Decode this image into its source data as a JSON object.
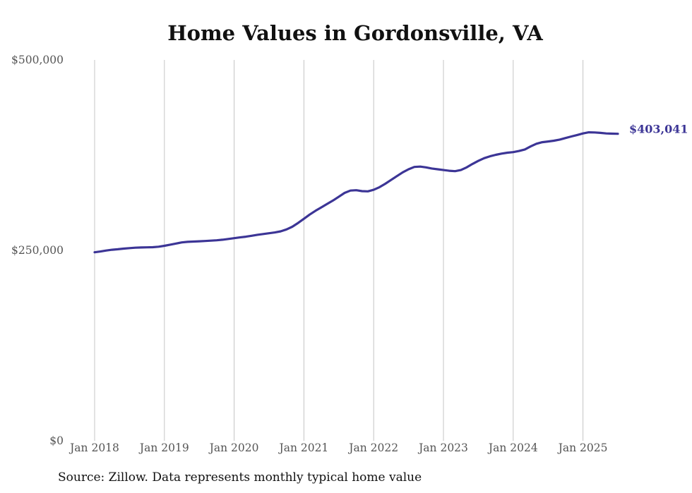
{
  "chart_data": {
    "type": "line",
    "title": "Home Values in Gordonsville, VA",
    "source_note": "Source: Zillow. Data represents monthly typical home value",
    "xlabel": "",
    "ylabel": "",
    "x_tick_labels": [
      "Jan 2018",
      "Jan 2019",
      "Jan 2020",
      "Jan 2021",
      "Jan 2022",
      "Jan 2023",
      "Jan 2024",
      "Jan 2025"
    ],
    "y_tick_labels": [
      "$0",
      "$250,000",
      "$500,000"
    ],
    "ylim": [
      0,
      500000
    ],
    "xlim": [
      "2018-01",
      "2025-07"
    ],
    "grid": "vertical lines at each January",
    "line_color": "#3c3596",
    "end_label": "$403,041",
    "series": [
      {
        "x": [
          "2018-01",
          "2018-02",
          "2018-03",
          "2018-04",
          "2018-05",
          "2018-06",
          "2018-07",
          "2018-08",
          "2018-09",
          "2018-10",
          "2018-11",
          "2018-12",
          "2019-01",
          "2019-02",
          "2019-03",
          "2019-04",
          "2019-05",
          "2019-06",
          "2019-07",
          "2019-08",
          "2019-09",
          "2019-10",
          "2019-11",
          "2019-12",
          "2020-01",
          "2020-02",
          "2020-03",
          "2020-04",
          "2020-05",
          "2020-06",
          "2020-07",
          "2020-08",
          "2020-09",
          "2020-10",
          "2020-11",
          "2020-12",
          "2021-01",
          "2021-02",
          "2021-03",
          "2021-04",
          "2021-05",
          "2021-06",
          "2021-07",
          "2021-08",
          "2021-09",
          "2021-10",
          "2021-11",
          "2021-12",
          "2022-01",
          "2022-02",
          "2022-03",
          "2022-04",
          "2022-05",
          "2022-06",
          "2022-07",
          "2022-08",
          "2022-09",
          "2022-10",
          "2022-11",
          "2022-12",
          "2023-01",
          "2023-02",
          "2023-03",
          "2023-04",
          "2023-05",
          "2023-06",
          "2023-07",
          "2023-08",
          "2023-09",
          "2023-10",
          "2023-11",
          "2023-12",
          "2024-01",
          "2024-02",
          "2024-03",
          "2024-04",
          "2024-05",
          "2024-06",
          "2024-07",
          "2024-08",
          "2024-09",
          "2024-10",
          "2024-11",
          "2024-12",
          "2025-01",
          "2025-02",
          "2025-03",
          "2025-04",
          "2025-05",
          "2025-06",
          "2025-07"
        ],
        "values": [
          247500,
          248500,
          249800,
          250800,
          251500,
          252300,
          253000,
          253500,
          253800,
          254000,
          254200,
          254800,
          256000,
          257500,
          259000,
          260500,
          261200,
          261600,
          261900,
          262300,
          262800,
          263200,
          264000,
          265000,
          266000,
          267000,
          268000,
          269200,
          270500,
          271500,
          272500,
          273500,
          275000,
          277500,
          281000,
          286000,
          291500,
          297000,
          302000,
          306500,
          311000,
          315500,
          320500,
          325500,
          328500,
          329000,
          327800,
          327500,
          329500,
          333000,
          337500,
          342500,
          347500,
          352500,
          356500,
          359500,
          360000,
          359000,
          357500,
          356500,
          355500,
          354500,
          354000,
          355500,
          359000,
          363500,
          367500,
          371000,
          373500,
          375500,
          377000,
          378200,
          379000,
          380500,
          382500,
          386500,
          390000,
          392000,
          393000,
          394000,
          395500,
          397500,
          399500,
          401500,
          403500,
          405000,
          404800,
          404300,
          403500,
          403200,
          403041
        ]
      }
    ]
  }
}
